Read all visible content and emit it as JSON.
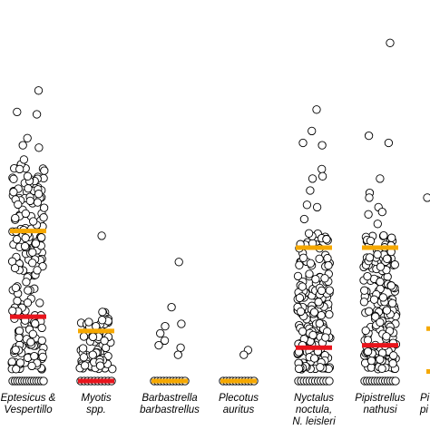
{
  "chart_data": {
    "type": "scatter",
    "title": "",
    "xlabel": "",
    "ylabel": "",
    "grid": false,
    "legend": "none",
    "marker": "open-circle",
    "colors": {
      "median_line": "#f5a800",
      "lower_line": "#e8141c",
      "marker_edge": "#000000",
      "marker_fill": "#ffffff"
    },
    "categories": [
      {
        "label_lines": [
          "Eptesicus &",
          "Vespertillo"
        ],
        "median": 0.315,
        "lower": 0.135,
        "n_zero": 14,
        "n_points": 190,
        "low_max": 0.45,
        "outliers": [
          0.61,
          0.56,
          0.49,
          0.495,
          0.455,
          0.565,
          0.51,
          0.42,
          0.445,
          0.465,
          0.43
        ]
      },
      {
        "label_lines": [
          "Myotis",
          "spp."
        ],
        "median": 0.105,
        "lower": 0.0,
        "n_zero": 10,
        "n_points": 75,
        "low_max": 0.15,
        "outliers": [
          0.305
        ]
      },
      {
        "label_lines": [
          "Barbastrella",
          "barbastrellus"
        ],
        "median": 0.0,
        "lower": 0.0,
        "n_zero": 11,
        "n_points": 0,
        "low_max": 0.0,
        "outliers": [
          0.25,
          0.155,
          0.07,
          0.085,
          0.12,
          0.075,
          0.1,
          0.115,
          0.055
        ]
      },
      {
        "label_lines": [
          "Plecotus",
          "auritus"
        ],
        "median": 0.0,
        "lower": 0.0,
        "n_zero": 11,
        "n_points": 0,
        "low_max": 0.0,
        "outliers": [
          0.065,
          0.055
        ]
      },
      {
        "label_lines": [
          "Nyctalus",
          "noctula,",
          "N. leisleri"
        ],
        "median": 0.28,
        "lower": 0.07,
        "n_zero": 12,
        "n_points": 180,
        "low_max": 0.31,
        "outliers": [
          0.57,
          0.525,
          0.495,
          0.5,
          0.445,
          0.43,
          0.425,
          0.4,
          0.37,
          0.365,
          0.34,
          0.31
        ]
      },
      {
        "label_lines": [
          "Pipistrellus",
          "nathusi"
        ],
        "median": 0.28,
        "lower": 0.075,
        "n_zero": 13,
        "n_points": 180,
        "low_max": 0.31,
        "outliers": [
          0.71,
          0.515,
          0.5,
          0.425,
          0.395,
          0.385,
          0.365,
          0.355,
          0.35,
          0.33
        ]
      }
    ],
    "partial_category_labels": [
      "Pi",
      "pi"
    ]
  }
}
